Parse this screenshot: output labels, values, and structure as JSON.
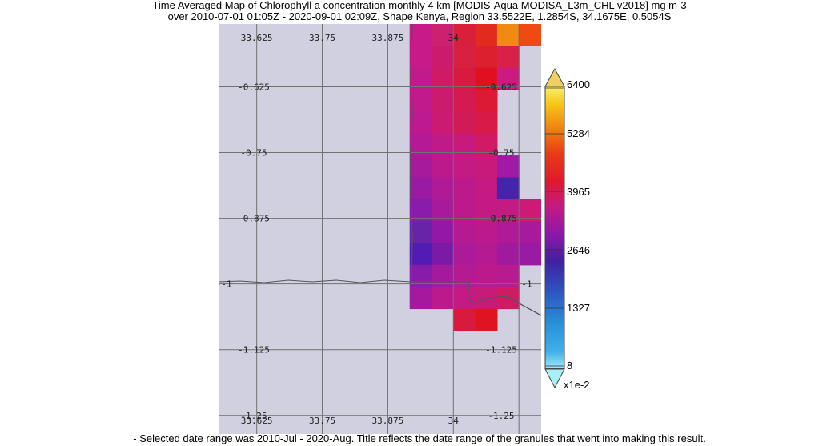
{
  "title_line1": "Time Averaged Map of Chlorophyll a concentration monthly 4 km [MODIS-Aqua MODISA_L3m_CHL v2018] mg m-3",
  "title_line2": "over 2010-07-01 01:05Z - 2020-09-01 02:09Z, Shape Kenya, Region 33.5522E, 1.2854S, 34.1675E, 0.5054S",
  "caption": "- Selected date range was 2010-Jul - 2020-Aug. Title reflects the date range of the granules that went into making this result.",
  "map": {
    "background_color": "#d0d0e0",
    "lon_range": [
      33.5522,
      34.1675
    ],
    "lat_range": [
      -1.2854,
      -0.5054
    ],
    "lon_gridlines": [
      33.625,
      33.75,
      33.875,
      34.0,
      34.125
    ],
    "lat_gridlines": [
      -0.625,
      -0.75,
      -0.875,
      -1.0,
      -1.125,
      -1.25
    ],
    "lon_labels_top": [
      "33.625",
      "33.75",
      "33.875",
      "34"
    ],
    "lon_labels_bottom": [
      "33.625",
      "33.75",
      "33.875",
      "34"
    ],
    "lat_labels_left": [
      "-0.625",
      "-0.75",
      "-0.875",
      "-1",
      "-1.125",
      "-1.25"
    ],
    "lat_labels_right": [
      "-0.625",
      "-0.75",
      "-0.875",
      "-1",
      "-1.125",
      "-1.25"
    ],
    "cell_size_deg": 0.041666,
    "data_origin": {
      "lon0": 33.9167,
      "lat0": -0.5054
    },
    "cells": [
      [
        "#c81a88",
        "#cc2070",
        "#d8203a",
        "#e22a1e",
        "#f08a10",
        "#f04a10"
      ],
      [
        "#c81a88",
        "#cc1a6e",
        "#d82040",
        "#dc2030",
        "#d82048",
        ""
      ],
      [
        "#c01a8c",
        "#d01a66",
        "#d81a40",
        "#e01020",
        "#cc1a80",
        ""
      ],
      [
        "#c01a8c",
        "#cc1a6e",
        "#d41a50",
        "#dc1a36",
        "",
        ""
      ],
      [
        "#bc1a8e",
        "#cc1a72",
        "#d21a56",
        "#d81a48",
        "",
        ""
      ],
      [
        "#b41a96",
        "#c01a88",
        "#c81a7c",
        "#d01a66",
        "",
        ""
      ],
      [
        "#a81a9c",
        "#bc1a8c",
        "#c41a84",
        "#c81a7a",
        "#a01aa6",
        ""
      ],
      [
        "#9a1aa4",
        "#b01a96",
        "#bc1a8c",
        "#c41a82",
        "#4424a8",
        ""
      ],
      [
        "#8a1cac",
        "#a81a9c",
        "#bc1a8c",
        "#c41a84",
        "#c41a84",
        "#cc1a76"
      ],
      [
        "#6824a8",
        "#9418a8",
        "#b41a92",
        "#bc1a8c",
        "#b01a98",
        "#a81a9c"
      ],
      [
        "#521cb4",
        "#7c1aa8",
        "#ac1a9a",
        "#b41a92",
        "#a01aa0",
        "#9a1aa4"
      ],
      [
        "#881caa",
        "#a41a9e",
        "#b41a92",
        "#bc1a8c",
        "#b81a90",
        ""
      ],
      [
        "#a41a9e",
        "#bc1a8c",
        "#c41a84",
        "#c81a7a",
        "#d01a64",
        ""
      ],
      [
        "",
        "",
        "#d81a3c",
        "#e01420",
        "",
        ""
      ]
    ],
    "boundary_color": "#555555"
  },
  "colorbar": {
    "tick_labels": [
      "6400",
      "5284",
      "3965",
      "2646",
      "1327",
      "8"
    ],
    "multiplier_label": "x1e-2",
    "over_color": "#f0d060",
    "under_color": "#a8f0f8"
  }
}
